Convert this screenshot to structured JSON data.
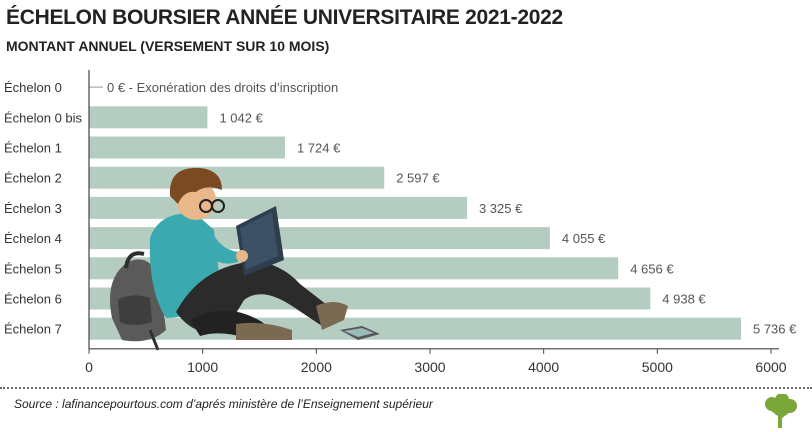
{
  "header": {
    "title": "ÉCHELON BOURSIER ANNÉE UNIVERSITAIRE 2021-2022",
    "subtitle": "MONTANT ANNUEL (VERSEMENT SUR 10 MOIS)"
  },
  "footer": {
    "source": "Source : lafinancepourtous.com d’aprés ministère de l’Enseignement supérieur"
  },
  "colors": {
    "bar": "#b5cdc1",
    "axis": "#444444",
    "text": "#333333",
    "logo": "#7aa63a"
  },
  "icons": {
    "illustration": "student-reading-illustration",
    "logo": "tree-logo-icon"
  },
  "chart_data": {
    "type": "bar",
    "orientation": "horizontal",
    "categories": [
      "Échelon 0",
      "Échelon 0 bis",
      "Échelon 1",
      "Échelon 2",
      "Échelon 3",
      "Échelon 4",
      "Échelon 5",
      "Échelon 6",
      "Échelon 7"
    ],
    "values": [
      0,
      1042,
      1724,
      2597,
      3325,
      4055,
      4656,
      4938,
      5736
    ],
    "data_labels": [
      "0 € - Exonération des droits d’inscription",
      "1 042 €",
      "1 724 €",
      "2 597 €",
      "3 325 €",
      "4 055 €",
      "4 656 €",
      "4 938 €",
      "5 736 €"
    ],
    "xticks": [
      0,
      1000,
      2000,
      3000,
      4000,
      5000,
      6000
    ],
    "xtick_labels": [
      "0",
      "1000",
      "2000",
      "3000",
      "4000",
      "5000",
      "6000"
    ],
    "xlim": [
      0,
      6000
    ],
    "grid": false
  }
}
